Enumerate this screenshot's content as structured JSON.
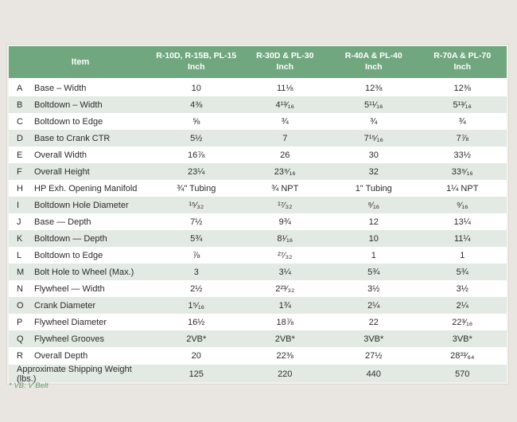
{
  "page": {
    "background": "#E9E6E1"
  },
  "table": {
    "header": {
      "item_label": "Item",
      "bg_color": "#70A77E",
      "columns": [
        {
          "model": "R-10D, R-15B, PL-15",
          "unit": "Inch"
        },
        {
          "model": "R-30D & PL-30",
          "unit": "Inch"
        },
        {
          "model": "R-40A & PL-40",
          "unit": "Inch"
        },
        {
          "model": "R-70A & PL-70",
          "unit": "Inch"
        }
      ]
    },
    "alt_row_bg": "#E3EAE3",
    "rows": [
      {
        "letter": "A",
        "item": "Base – Width",
        "values": [
          "10",
          "11⅛",
          "12⅜",
          "12⅜"
        ]
      },
      {
        "letter": "B",
        "item": "Boltdown – Width",
        "values": [
          "4⅜",
          "4¹³⁄₁₆",
          "5¹¹⁄₁₆",
          "5¹³⁄₁₆"
        ]
      },
      {
        "letter": "C",
        "item": "Boltdown to Edge",
        "values": [
          "⅝",
          "¾",
          "¾",
          "¾"
        ]
      },
      {
        "letter": "D",
        "item": "Base to Crank CTR",
        "values": [
          "5½",
          "7",
          "7¹⁵⁄₁₆",
          "7⅞"
        ]
      },
      {
        "letter": "E",
        "item": "Overall Width",
        "values": [
          "16⅞",
          "26",
          "30",
          "33½"
        ]
      },
      {
        "letter": "F",
        "item": "Overall Height",
        "values": [
          "23¼",
          "23⁹⁄₁₆",
          "32",
          "33⁹⁄₁₆"
        ]
      },
      {
        "letter": "H",
        "item": "HP Exh. Opening Manifold",
        "values": [
          "¾\" Tubing",
          "¾ NPT",
          "1\" Tubing",
          "1¼ NPT"
        ]
      },
      {
        "letter": "I",
        "item": "Boltdown Hole Diameter",
        "values": [
          "¹⁵⁄₃₂",
          "¹⁷⁄₃₂",
          "⁹⁄₁₆",
          "⁹⁄₁₆"
        ]
      },
      {
        "letter": "J",
        "item": "Base — Depth",
        "values": [
          "7½",
          "9¾",
          "12",
          "13¼"
        ]
      },
      {
        "letter": "K",
        "item": "Boltdown — Depth",
        "values": [
          "5¾",
          "8¹⁄₁₆",
          "10",
          "11¼"
        ]
      },
      {
        "letter": "L",
        "item": "Boltdown to Edge",
        "values": [
          "⅞",
          "²⁷⁄₃₂",
          "1",
          "1"
        ]
      },
      {
        "letter": "M",
        "item": "Bolt Hole to Wheel (Max.)",
        "values": [
          "3",
          "3¼",
          "5¾",
          "5¾"
        ]
      },
      {
        "letter": "N",
        "item": "Flywheel — Width",
        "values": [
          "2½",
          "2²³⁄₃₂",
          "3½",
          "3½"
        ]
      },
      {
        "letter": "O",
        "item": "Crank Diameter",
        "values": [
          "1⁵⁄₁₆",
          "1¾",
          "2¼",
          "2¼"
        ]
      },
      {
        "letter": "P",
        "item": "Flywheel Diameter",
        "values": [
          "16½",
          "18⅞",
          "22",
          "22³⁄₁₆"
        ]
      },
      {
        "letter": "Q",
        "item": "Flywheel Grooves",
        "values": [
          "2VB*",
          "2VB*",
          "3VB*",
          "3VB*"
        ]
      },
      {
        "letter": "R",
        "item": "Overall Depth",
        "values": [
          "20",
          "22⅜",
          "27½",
          "28³³⁄₆₄"
        ]
      }
    ],
    "shipping": {
      "label": "Approximate Shipping Weight (lbs.)",
      "values": [
        "125",
        "220",
        "440",
        "570"
      ]
    }
  },
  "footnote": {
    "text": "* VB: V Belt",
    "color": "#5F9B71"
  }
}
